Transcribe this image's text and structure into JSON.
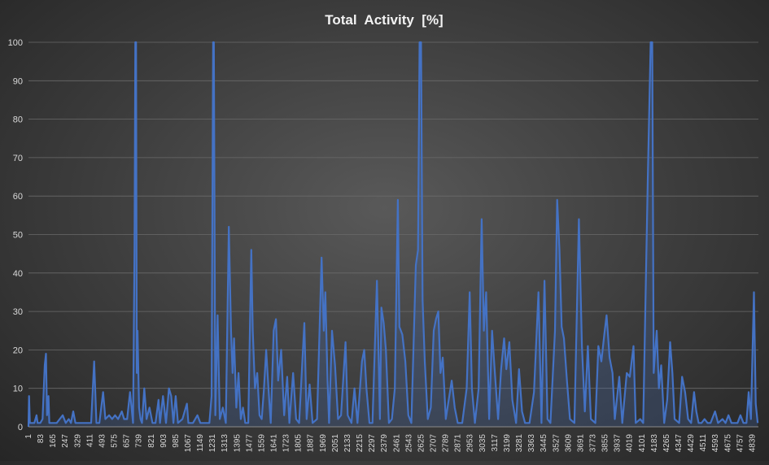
{
  "chart_data": {
    "type": "line",
    "title": "Total  Activity  [%]",
    "xlabel": "",
    "ylabel": "",
    "ylim": [
      0,
      100
    ],
    "y_ticks": [
      0,
      10,
      20,
      30,
      40,
      50,
      60,
      70,
      80,
      90,
      100
    ],
    "x_ticks": [
      "1",
      "83",
      "165",
      "247",
      "329",
      "411",
      "493",
      "575",
      "657",
      "739",
      "821",
      "903",
      "985",
      "1067",
      "1149",
      "1231",
      "1313",
      "1395",
      "1477",
      "1559",
      "1641",
      "1723",
      "1805",
      "1887",
      "1969",
      "2051",
      "2133",
      "2215",
      "2297",
      "2379",
      "2461",
      "2543",
      "2625",
      "2707",
      "2789",
      "2871",
      "2953",
      "3035",
      "3117",
      "3199",
      "3281",
      "3363",
      "3445",
      "3527",
      "3609",
      "3691",
      "3773",
      "3855",
      "3937",
      "4019",
      "4101",
      "4183",
      "4265",
      "4347",
      "4429",
      "4511",
      "4593",
      "4675",
      "4757",
      "4839"
    ],
    "x_range": [
      1,
      4880
    ],
    "grid": "horizontal",
    "legend": "none",
    "line_color": "#4472c4",
    "series": [
      {
        "values": [
          [
            1,
            0
          ],
          [
            5,
            8
          ],
          [
            10,
            1
          ],
          [
            20,
            1
          ],
          [
            40,
            1
          ],
          [
            55,
            3
          ],
          [
            62,
            1
          ],
          [
            70,
            1
          ],
          [
            80,
            1
          ],
          [
            95,
            2
          ],
          [
            110,
            16
          ],
          [
            118,
            19
          ],
          [
            125,
            3
          ],
          [
            135,
            8
          ],
          [
            140,
            1
          ],
          [
            160,
            1
          ],
          [
            190,
            1
          ],
          [
            210,
            2
          ],
          [
            230,
            3
          ],
          [
            250,
            1
          ],
          [
            270,
            2
          ],
          [
            285,
            1
          ],
          [
            300,
            4
          ],
          [
            315,
            1
          ],
          [
            330,
            1
          ],
          [
            360,
            1
          ],
          [
            390,
            1
          ],
          [
            420,
            1
          ],
          [
            440,
            17
          ],
          [
            455,
            1
          ],
          [
            475,
            1
          ],
          [
            500,
            9
          ],
          [
            515,
            2
          ],
          [
            540,
            3
          ],
          [
            560,
            2
          ],
          [
            580,
            3
          ],
          [
            600,
            2
          ],
          [
            625,
            4
          ],
          [
            640,
            2
          ],
          [
            660,
            2
          ],
          [
            680,
            9
          ],
          [
            700,
            1
          ],
          [
            710,
            46
          ],
          [
            715,
            100
          ],
          [
            720,
            100
          ],
          [
            725,
            14
          ],
          [
            730,
            25
          ],
          [
            740,
            5
          ],
          [
            750,
            2
          ],
          [
            760,
            1
          ],
          [
            775,
            10
          ],
          [
            790,
            2
          ],
          [
            810,
            5
          ],
          [
            830,
            1
          ],
          [
            850,
            1
          ],
          [
            870,
            7
          ],
          [
            880,
            1
          ],
          [
            900,
            8
          ],
          [
            920,
            1
          ],
          [
            940,
            10
          ],
          [
            955,
            8
          ],
          [
            970,
            1
          ],
          [
            985,
            8
          ],
          [
            1000,
            1
          ],
          [
            1030,
            2
          ],
          [
            1060,
            6
          ],
          [
            1070,
            1
          ],
          [
            1100,
            1
          ],
          [
            1130,
            3
          ],
          [
            1150,
            1
          ],
          [
            1180,
            1
          ],
          [
            1210,
            1
          ],
          [
            1225,
            8
          ],
          [
            1235,
            100
          ],
          [
            1240,
            100
          ],
          [
            1250,
            3
          ],
          [
            1265,
            29
          ],
          [
            1280,
            2
          ],
          [
            1300,
            5
          ],
          [
            1320,
            1
          ],
          [
            1340,
            52
          ],
          [
            1355,
            25
          ],
          [
            1365,
            14
          ],
          [
            1375,
            23
          ],
          [
            1390,
            5
          ],
          [
            1405,
            14
          ],
          [
            1420,
            2
          ],
          [
            1435,
            5
          ],
          [
            1450,
            1
          ],
          [
            1470,
            1
          ],
          [
            1490,
            46
          ],
          [
            1500,
            25
          ],
          [
            1515,
            10
          ],
          [
            1530,
            14
          ],
          [
            1545,
            3
          ],
          [
            1560,
            2
          ],
          [
            1575,
            10
          ],
          [
            1590,
            20
          ],
          [
            1605,
            10
          ],
          [
            1620,
            1
          ],
          [
            1640,
            25
          ],
          [
            1655,
            28
          ],
          [
            1670,
            12
          ],
          [
            1690,
            20
          ],
          [
            1710,
            3
          ],
          [
            1730,
            13
          ],
          [
            1745,
            1
          ],
          [
            1770,
            14
          ],
          [
            1790,
            2
          ],
          [
            1810,
            1
          ],
          [
            1830,
            16
          ],
          [
            1845,
            27
          ],
          [
            1860,
            2
          ],
          [
            1880,
            11
          ],
          [
            1900,
            1
          ],
          [
            1930,
            2
          ],
          [
            1960,
            44
          ],
          [
            1975,
            25
          ],
          [
            1985,
            35
          ],
          [
            2000,
            12
          ],
          [
            2010,
            1
          ],
          [
            2030,
            25
          ],
          [
            2050,
            16
          ],
          [
            2070,
            2
          ],
          [
            2090,
            3
          ],
          [
            2120,
            22
          ],
          [
            2135,
            3
          ],
          [
            2160,
            1
          ],
          [
            2180,
            10
          ],
          [
            2200,
            1
          ],
          [
            2230,
            17
          ],
          [
            2245,
            20
          ],
          [
            2260,
            10
          ],
          [
            2280,
            1
          ],
          [
            2300,
            1
          ],
          [
            2330,
            38
          ],
          [
            2350,
            2
          ],
          [
            2360,
            31
          ],
          [
            2375,
            27
          ],
          [
            2390,
            20
          ],
          [
            2410,
            1
          ],
          [
            2430,
            2
          ],
          [
            2450,
            10
          ],
          [
            2470,
            59
          ],
          [
            2480,
            26
          ],
          [
            2490,
            25
          ],
          [
            2500,
            24
          ],
          [
            2520,
            17
          ],
          [
            2540,
            3
          ],
          [
            2560,
            1
          ],
          [
            2590,
            42
          ],
          [
            2605,
            46
          ],
          [
            2615,
            100
          ],
          [
            2625,
            100
          ],
          [
            2635,
            33
          ],
          [
            2650,
            17
          ],
          [
            2670,
            2
          ],
          [
            2690,
            5
          ],
          [
            2710,
            25
          ],
          [
            2725,
            28
          ],
          [
            2740,
            30
          ],
          [
            2755,
            14
          ],
          [
            2770,
            18
          ],
          [
            2790,
            2
          ],
          [
            2810,
            7
          ],
          [
            2830,
            12
          ],
          [
            2850,
            5
          ],
          [
            2870,
            1
          ],
          [
            2900,
            1
          ],
          [
            2930,
            10
          ],
          [
            2950,
            35
          ],
          [
            2965,
            10
          ],
          [
            2985,
            1
          ],
          [
            3010,
            10
          ],
          [
            3030,
            54
          ],
          [
            3045,
            25
          ],
          [
            3060,
            35
          ],
          [
            3080,
            2
          ],
          [
            3100,
            25
          ],
          [
            3115,
            16
          ],
          [
            3140,
            2
          ],
          [
            3160,
            15
          ],
          [
            3180,
            23
          ],
          [
            3195,
            15
          ],
          [
            3215,
            22
          ],
          [
            3235,
            7
          ],
          [
            3260,
            1
          ],
          [
            3280,
            15
          ],
          [
            3300,
            4
          ],
          [
            3320,
            1
          ],
          [
            3350,
            1
          ],
          [
            3380,
            9
          ],
          [
            3410,
            35
          ],
          [
            3430,
            1
          ],
          [
            3450,
            38
          ],
          [
            3470,
            2
          ],
          [
            3490,
            1
          ],
          [
            3520,
            25
          ],
          [
            3535,
            59
          ],
          [
            3550,
            46
          ],
          [
            3565,
            26
          ],
          [
            3580,
            23
          ],
          [
            3600,
            12
          ],
          [
            3620,
            2
          ],
          [
            3650,
            1
          ],
          [
            3680,
            54
          ],
          [
            3700,
            21
          ],
          [
            3720,
            4
          ],
          [
            3740,
            21
          ],
          [
            3760,
            2
          ],
          [
            3790,
            1
          ],
          [
            3810,
            21
          ],
          [
            3830,
            17
          ],
          [
            3850,
            24
          ],
          [
            3865,
            29
          ],
          [
            3885,
            18
          ],
          [
            3905,
            14
          ],
          [
            3920,
            2
          ],
          [
            3950,
            13
          ],
          [
            3970,
            1
          ],
          [
            4000,
            14
          ],
          [
            4020,
            13
          ],
          [
            4045,
            21
          ],
          [
            4060,
            1
          ],
          [
            4090,
            2
          ],
          [
            4110,
            1
          ],
          [
            4140,
            64
          ],
          [
            4160,
            100
          ],
          [
            4170,
            100
          ],
          [
            4180,
            14
          ],
          [
            4200,
            25
          ],
          [
            4215,
            10
          ],
          [
            4230,
            16
          ],
          [
            4250,
            1
          ],
          [
            4270,
            7
          ],
          [
            4290,
            22
          ],
          [
            4305,
            14
          ],
          [
            4320,
            2
          ],
          [
            4350,
            1
          ],
          [
            4370,
            13
          ],
          [
            4390,
            9
          ],
          [
            4410,
            2
          ],
          [
            4430,
            1
          ],
          [
            4450,
            9
          ],
          [
            4465,
            4
          ],
          [
            4480,
            1
          ],
          [
            4500,
            1
          ],
          [
            4520,
            2
          ],
          [
            4540,
            1
          ],
          [
            4560,
            1
          ],
          [
            4590,
            4
          ],
          [
            4610,
            1
          ],
          [
            4640,
            2
          ],
          [
            4660,
            1
          ],
          [
            4680,
            3
          ],
          [
            4700,
            1
          ],
          [
            4720,
            1
          ],
          [
            4740,
            1
          ],
          [
            4760,
            3
          ],
          [
            4780,
            1
          ],
          [
            4800,
            1
          ],
          [
            4815,
            9
          ],
          [
            4830,
            2
          ],
          [
            4850,
            35
          ],
          [
            4862,
            6
          ],
          [
            4875,
            1
          ]
        ]
      }
    ]
  }
}
